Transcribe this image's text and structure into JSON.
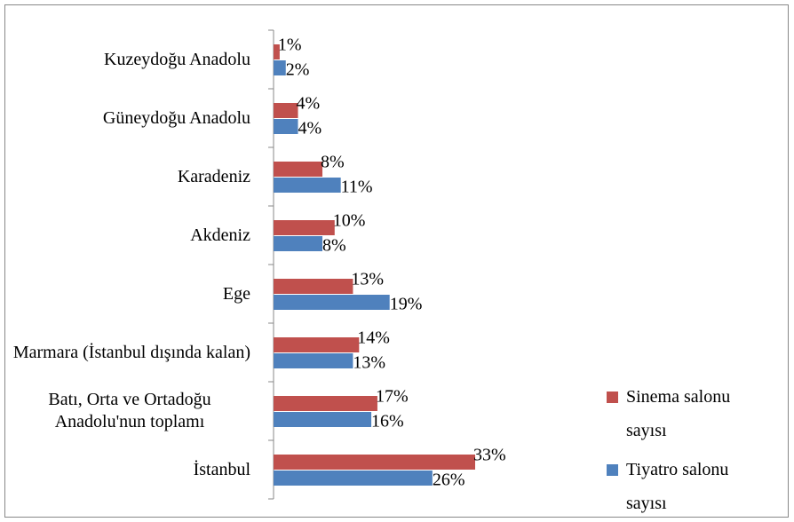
{
  "chart_data": {
    "type": "bar",
    "orientation": "horizontal",
    "categories": [
      "Kuzeydoğu Anadolu",
      "Güneydoğu Anadolu",
      "Karadeniz",
      "Akdeniz",
      "Ege",
      "Marmara (İstanbul dışında kalan)",
      "Batı, Orta ve Ortadoğu Anadolu'nun toplamı",
      "İstanbul"
    ],
    "series": [
      {
        "name": "Sinema salonu sayısı",
        "color": "#c0504d",
        "values": [
          1,
          4,
          8,
          10,
          13,
          14,
          17,
          33
        ],
        "value_labels": [
          "1%",
          "4%",
          "8%",
          "10%",
          "13%",
          "14%",
          "17%",
          "33%"
        ]
      },
      {
        "name": "Tiyatro salonu sayısı",
        "color": "#4f81bd",
        "values": [
          2,
          4,
          11,
          8,
          19,
          13,
          16,
          26
        ],
        "value_labels": [
          "2%",
          "4%",
          "11%",
          "8%",
          "19%",
          "13%",
          "16%",
          "26%"
        ]
      }
    ],
    "legend": "right"
  }
}
